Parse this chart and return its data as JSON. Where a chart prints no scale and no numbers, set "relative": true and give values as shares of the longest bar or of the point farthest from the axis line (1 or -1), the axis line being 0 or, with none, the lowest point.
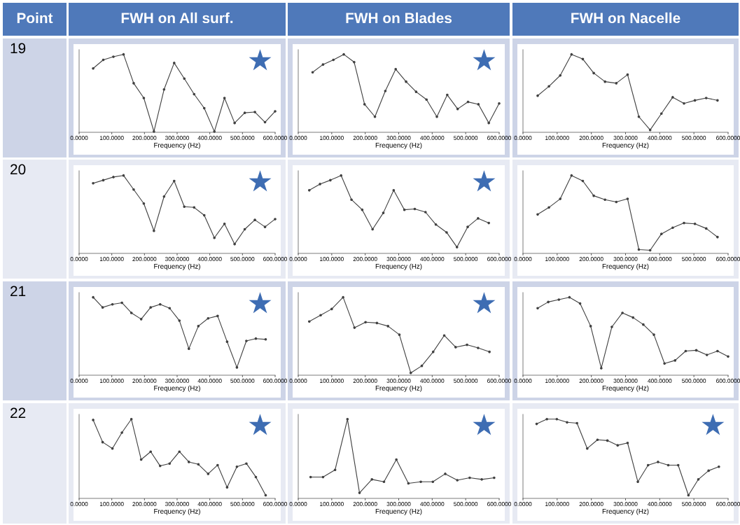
{
  "chart_data": [
    {
      "type": "line",
      "title": "FWH on All surf.",
      "subtitle": "Point",
      "ylabel": "19",
      "xlabel": "Frequency (Hz)",
      "relative": true,
      "tick_labels": "x",
      "marker": "circle",
      "color": "#404040",
      "annotations": [
        "★"
      ],
      "xlim": [
        0,
        600
      ],
      "xticks": [
        {
          "value": 0,
          "label": "0.0000"
        },
        {
          "value": 100,
          "label": "100.0000"
        },
        {
          "value": 200,
          "label": "200.0000"
        },
        {
          "value": 300,
          "label": "300.0000"
        },
        {
          "value": 400,
          "label": "400.0000"
        },
        {
          "value": 500,
          "label": "500.0000"
        },
        {
          "value": 600,
          "label": "600.0000"
        }
      ],
      "x": [
        43,
        74,
        105,
        136,
        167,
        198,
        229,
        260,
        291,
        322,
        352,
        383,
        414,
        445,
        476,
        507,
        538,
        569,
        600
      ],
      "values": [
        0.82,
        0.93,
        0.97,
        1,
        0.63,
        0.44,
        0.01,
        0.55,
        0.89,
        0.69,
        0.49,
        0.31,
        0.01,
        0.44,
        0.12,
        0.25,
        0.26,
        0.13,
        0.27
      ]
    },
    {
      "type": "line",
      "title": "FWH on Blades",
      "xlabel": "Frequency (Hz)",
      "relative": true,
      "tick_labels": "x",
      "marker": "circle",
      "color": "#404040",
      "annotations": [
        "★"
      ],
      "xlim": [
        0,
        600
      ],
      "xticks": [
        {
          "value": 0,
          "label": "0.0000"
        },
        {
          "value": 100,
          "label": "100.0000"
        },
        {
          "value": 200,
          "label": "200.0000"
        },
        {
          "value": 300,
          "label": "300.0000"
        },
        {
          "value": 400,
          "label": "400.0000"
        },
        {
          "value": 500,
          "label": "500.0000"
        },
        {
          "value": 600,
          "label": "600.0000"
        }
      ],
      "x": [
        43,
        74,
        105,
        136,
        167,
        198,
        229,
        260,
        291,
        322,
        352,
        383,
        414,
        445,
        476,
        507,
        538,
        569,
        600
      ],
      "values": [
        0.77,
        0.87,
        0.93,
        1,
        0.9,
        0.36,
        0.2,
        0.53,
        0.81,
        0.65,
        0.52,
        0.42,
        0.2,
        0.48,
        0.3,
        0.39,
        0.36,
        0.12,
        0.37
      ]
    },
    {
      "type": "line",
      "title": "FWH on Nacelle",
      "xlabel": "Frequency (Hz)",
      "relative": true,
      "tick_labels": "x",
      "marker": "circle",
      "color": "#404040",
      "xlim": [
        0,
        600
      ],
      "xticks": [
        {
          "value": 0,
          "label": "0.0000"
        },
        {
          "value": 100,
          "label": "100.0000"
        },
        {
          "value": 200,
          "label": "200.0000"
        },
        {
          "value": 300,
          "label": "300.0000"
        },
        {
          "value": 400,
          "label": "400.0000"
        },
        {
          "value": 500,
          "label": "500.0000"
        },
        {
          "value": 600,
          "label": "600.0000"
        }
      ],
      "x": [
        43,
        76,
        109,
        142,
        175,
        207,
        240,
        273,
        306,
        339,
        372,
        405,
        438,
        471,
        503,
        536,
        569
      ],
      "values": [
        0.47,
        0.59,
        0.73,
        1,
        0.94,
        0.76,
        0.65,
        0.63,
        0.74,
        0.2,
        0.03,
        0.24,
        0.45,
        0.37,
        0.41,
        0.44,
        0.41
      ]
    },
    {
      "type": "line",
      "ylabel": "20",
      "xlabel": "Frequency (Hz)",
      "relative": true,
      "tick_labels": "x",
      "marker": "circle",
      "color": "#404040",
      "annotations": [
        "★"
      ],
      "xlim": [
        0,
        600
      ],
      "xticks": [
        {
          "value": 0,
          "label": "0.0000"
        },
        {
          "value": 100,
          "label": "100.0000"
        },
        {
          "value": 200,
          "label": "200.0000"
        },
        {
          "value": 300,
          "label": "300.0000"
        },
        {
          "value": 400,
          "label": "400.0000"
        },
        {
          "value": 500,
          "label": "500.0000"
        },
        {
          "value": 600,
          "label": "600.0000"
        }
      ],
      "x": [
        43,
        74,
        105,
        136,
        167,
        198,
        229,
        260,
        291,
        322,
        352,
        383,
        414,
        445,
        476,
        507,
        538,
        569,
        600
      ],
      "values": [
        0.9,
        0.94,
        0.98,
        1,
        0.82,
        0.64,
        0.29,
        0.73,
        0.93,
        0.6,
        0.59,
        0.49,
        0.2,
        0.38,
        0.12,
        0.31,
        0.43,
        0.34,
        0.44
      ]
    },
    {
      "type": "line",
      "xlabel": "Frequency (Hz)",
      "relative": true,
      "tick_labels": "x",
      "marker": "circle",
      "color": "#404040",
      "annotations": [
        "★"
      ],
      "xlim": [
        0,
        600
      ],
      "xticks": [
        {
          "value": 0,
          "label": "0.0000"
        },
        {
          "value": 100,
          "label": "100.0000"
        },
        {
          "value": 200,
          "label": "200.0000"
        },
        {
          "value": 300,
          "label": "300.0000"
        },
        {
          "value": 400,
          "label": "400.0000"
        },
        {
          "value": 500,
          "label": "500.0000"
        },
        {
          "value": 600,
          "label": "600.0000"
        }
      ],
      "x": [
        33,
        65,
        96,
        128,
        159,
        191,
        222,
        254,
        285,
        317,
        348,
        380,
        411,
        443,
        474,
        506,
        537,
        569
      ],
      "values": [
        0.81,
        0.89,
        0.94,
        1,
        0.69,
        0.56,
        0.31,
        0.52,
        0.81,
        0.56,
        0.57,
        0.53,
        0.37,
        0.27,
        0.08,
        0.34,
        0.45,
        0.39
      ]
    },
    {
      "type": "line",
      "xlabel": "Frequency (Hz)",
      "relative": true,
      "tick_labels": "x",
      "marker": "circle",
      "color": "#404040",
      "xlim": [
        0,
        600
      ],
      "xticks": [
        {
          "value": 0,
          "label": "0.0000"
        },
        {
          "value": 100,
          "label": "100.0000"
        },
        {
          "value": 200,
          "label": "200.0000"
        },
        {
          "value": 300,
          "label": "300.0000"
        },
        {
          "value": 400,
          "label": "400.0000"
        },
        {
          "value": 500,
          "label": "500.0000"
        },
        {
          "value": 600,
          "label": "600.0000"
        }
      ],
      "x": [
        43,
        76,
        109,
        142,
        175,
        207,
        240,
        273,
        306,
        339,
        372,
        405,
        438,
        471,
        503,
        536,
        569
      ],
      "values": [
        0.5,
        0.59,
        0.7,
        1,
        0.93,
        0.74,
        0.69,
        0.66,
        0.7,
        0.05,
        0.04,
        0.25,
        0.33,
        0.39,
        0.38,
        0.32,
        0.21
      ]
    },
    {
      "type": "line",
      "ylabel": "21",
      "xlabel": "Frequency (Hz)",
      "relative": true,
      "tick_labels": "x",
      "marker": "circle",
      "color": "#404040",
      "annotations": [
        "★"
      ],
      "xlim": [
        0,
        600
      ],
      "xticks": [
        {
          "value": 0,
          "label": "0.0000"
        },
        {
          "value": 100,
          "label": "100.0000"
        },
        {
          "value": 200,
          "label": "200.0000"
        },
        {
          "value": 300,
          "label": "300.0000"
        },
        {
          "value": 400,
          "label": "400.0000"
        },
        {
          "value": 500,
          "label": "500.0000"
        },
        {
          "value": 600,
          "label": "600.0000"
        }
      ],
      "x": [
        43,
        72,
        102,
        131,
        160,
        190,
        219,
        248,
        277,
        307,
        336,
        365,
        395,
        424,
        453,
        483,
        512,
        541,
        571
      ],
      "values": [
        1,
        0.87,
        0.91,
        0.93,
        0.8,
        0.72,
        0.87,
        0.91,
        0.86,
        0.7,
        0.34,
        0.63,
        0.73,
        0.76,
        0.43,
        0.1,
        0.44,
        0.47,
        0.46
      ]
    },
    {
      "type": "line",
      "xlabel": "Frequency (Hz)",
      "relative": true,
      "tick_labels": "x",
      "marker": "circle",
      "color": "#404040",
      "annotations": [
        "★"
      ],
      "xlim": [
        0,
        600
      ],
      "xticks": [
        {
          "value": 0,
          "label": "0.0000"
        },
        {
          "value": 100,
          "label": "100.0000"
        },
        {
          "value": 200,
          "label": "200.0000"
        },
        {
          "value": 300,
          "label": "300.0000"
        },
        {
          "value": 400,
          "label": "400.0000"
        },
        {
          "value": 500,
          "label": "500.0000"
        },
        {
          "value": 600,
          "label": "600.0000"
        }
      ],
      "x": [
        33,
        67,
        100,
        134,
        168,
        201,
        235,
        268,
        302,
        336,
        369,
        403,
        436,
        470,
        504,
        537,
        571
      ],
      "values": [
        0.69,
        0.77,
        0.85,
        1,
        0.61,
        0.68,
        0.67,
        0.63,
        0.52,
        0.03,
        0.12,
        0.3,
        0.51,
        0.36,
        0.39,
        0.35,
        0.3
      ]
    },
    {
      "type": "line",
      "xlabel": "Frequency (Hz)",
      "relative": true,
      "tick_labels": "x",
      "marker": "circle",
      "color": "#404040",
      "xlim": [
        0,
        600
      ],
      "xticks": [
        {
          "value": 0,
          "label": "0.0000"
        },
        {
          "value": 100,
          "label": "100.0000"
        },
        {
          "value": 200,
          "label": "200.0000"
        },
        {
          "value": 300,
          "label": "300.0000"
        },
        {
          "value": 400,
          "label": "400.0000"
        },
        {
          "value": 500,
          "label": "500.0000"
        },
        {
          "value": 600,
          "label": "600.0000"
        }
      ],
      "x": [
        43,
        74,
        105,
        136,
        167,
        198,
        229,
        260,
        291,
        322,
        352,
        383,
        414,
        445,
        476,
        507,
        538,
        569,
        600
      ],
      "values": [
        0.86,
        0.94,
        0.97,
        1,
        0.92,
        0.63,
        0.09,
        0.62,
        0.8,
        0.74,
        0.65,
        0.52,
        0.15,
        0.19,
        0.31,
        0.32,
        0.26,
        0.31,
        0.24
      ]
    },
    {
      "type": "line",
      "ylabel": "22",
      "xlabel": "Frequency (Hz)",
      "relative": true,
      "tick_labels": "x",
      "marker": "circle",
      "color": "#404040",
      "annotations": [
        "★"
      ],
      "xlim": [
        0,
        600
      ],
      "xticks": [
        {
          "value": 0,
          "label": "0.0000"
        },
        {
          "value": 100,
          "label": "100.0000"
        },
        {
          "value": 200,
          "label": "200.0000"
        },
        {
          "value": 300,
          "label": "300.0000"
        },
        {
          "value": 400,
          "label": "400.0000"
        },
        {
          "value": 500,
          "label": "500.0000"
        },
        {
          "value": 600,
          "label": "600.0000"
        }
      ],
      "x": [
        43,
        72,
        102,
        131,
        160,
        190,
        219,
        248,
        277,
        307,
        336,
        365,
        395,
        424,
        453,
        483,
        512,
        541,
        571
      ],
      "values": [
        0.99,
        0.71,
        0.63,
        0.83,
        1,
        0.49,
        0.59,
        0.41,
        0.44,
        0.59,
        0.46,
        0.43,
        0.31,
        0.42,
        0.14,
        0.4,
        0.44,
        0.27,
        0.04
      ]
    },
    {
      "type": "line",
      "xlabel": "Frequency (Hz)",
      "relative": true,
      "tick_labels": "x",
      "marker": "circle",
      "color": "#404040",
      "annotations": [
        "★"
      ],
      "xlim": [
        0,
        600
      ],
      "xticks": [
        {
          "value": 0,
          "label": "0.0000"
        },
        {
          "value": 100,
          "label": "100.0000"
        },
        {
          "value": 200,
          "label": "200.0000"
        },
        {
          "value": 300,
          "label": "300.0000"
        },
        {
          "value": 400,
          "label": "400.0000"
        },
        {
          "value": 500,
          "label": "500.0000"
        },
        {
          "value": 600,
          "label": "600.0000"
        }
      ],
      "x": [
        37,
        74,
        110,
        147,
        183,
        220,
        256,
        293,
        329,
        366,
        402,
        439,
        475,
        512,
        548,
        585
      ],
      "values": [
        0.27,
        0.27,
        0.36,
        1,
        0.07,
        0.24,
        0.21,
        0.49,
        0.19,
        0.21,
        0.21,
        0.31,
        0.23,
        0.26,
        0.24,
        0.26
      ]
    },
    {
      "type": "line",
      "xlabel": "Frequency (Hz)",
      "relative": true,
      "tick_labels": "x",
      "marker": "circle",
      "color": "#404040",
      "annotations": [
        "★"
      ],
      "xlim": [
        0,
        600
      ],
      "xticks": [
        {
          "value": 0,
          "label": "0.0000"
        },
        {
          "value": 100,
          "label": "100.0000"
        },
        {
          "value": 200,
          "label": "200.0000"
        },
        {
          "value": 300,
          "label": "300.0000"
        },
        {
          "value": 400,
          "label": "400.0000"
        },
        {
          "value": 500,
          "label": "500.0000"
        },
        {
          "value": 600,
          "label": "600.0000"
        }
      ],
      "x": [
        40,
        70,
        99,
        129,
        158,
        188,
        218,
        247,
        277,
        306,
        336,
        366,
        395,
        425,
        454,
        484,
        513,
        543,
        573
      ],
      "values": [
        0.94,
        1,
        1,
        0.96,
        0.95,
        0.63,
        0.74,
        0.73,
        0.67,
        0.7,
        0.21,
        0.42,
        0.46,
        0.42,
        0.42,
        0.04,
        0.24,
        0.35,
        0.4
      ]
    }
  ]
}
